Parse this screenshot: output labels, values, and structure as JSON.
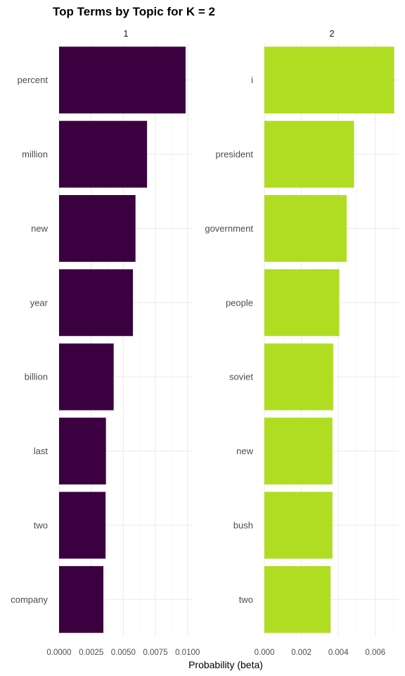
{
  "chart_data": {
    "type": "bar",
    "orientation": "horizontal",
    "title": "Top Terms by Topic for K = 2",
    "xlabel": "Probability (beta)",
    "ylabel": "",
    "grid": true,
    "legend": "none",
    "panels": [
      {
        "label": "1",
        "color": "#3B0040",
        "xlim": [
          0,
          0.0104
        ],
        "xticks": [
          0,
          0.0025,
          0.005,
          0.0075,
          0.01
        ],
        "xtick_labels": [
          "0.0000",
          "0.0025",
          "0.0050",
          "0.0075",
          "0.0100"
        ],
        "categories": [
          "percent",
          "million",
          "new",
          "year",
          "billion",
          "last",
          "two",
          "company"
        ],
        "values": [
          0.00985,
          0.00685,
          0.00595,
          0.00575,
          0.00425,
          0.00365,
          0.00362,
          0.00345
        ]
      },
      {
        "label": "2",
        "color": "#B0DD22",
        "xlim": [
          0,
          0.0073
        ],
        "xticks": [
          0,
          0.002,
          0.004,
          0.006
        ],
        "xtick_labels": [
          "0.000",
          "0.002",
          "0.004",
          "0.006"
        ],
        "categories": [
          "i",
          "president",
          "government",
          "people",
          "soviet",
          "new",
          "bush",
          "two"
        ],
        "values": [
          0.00702,
          0.00485,
          0.00445,
          0.00405,
          0.00372,
          0.00368,
          0.00368,
          0.00358
        ]
      }
    ]
  }
}
